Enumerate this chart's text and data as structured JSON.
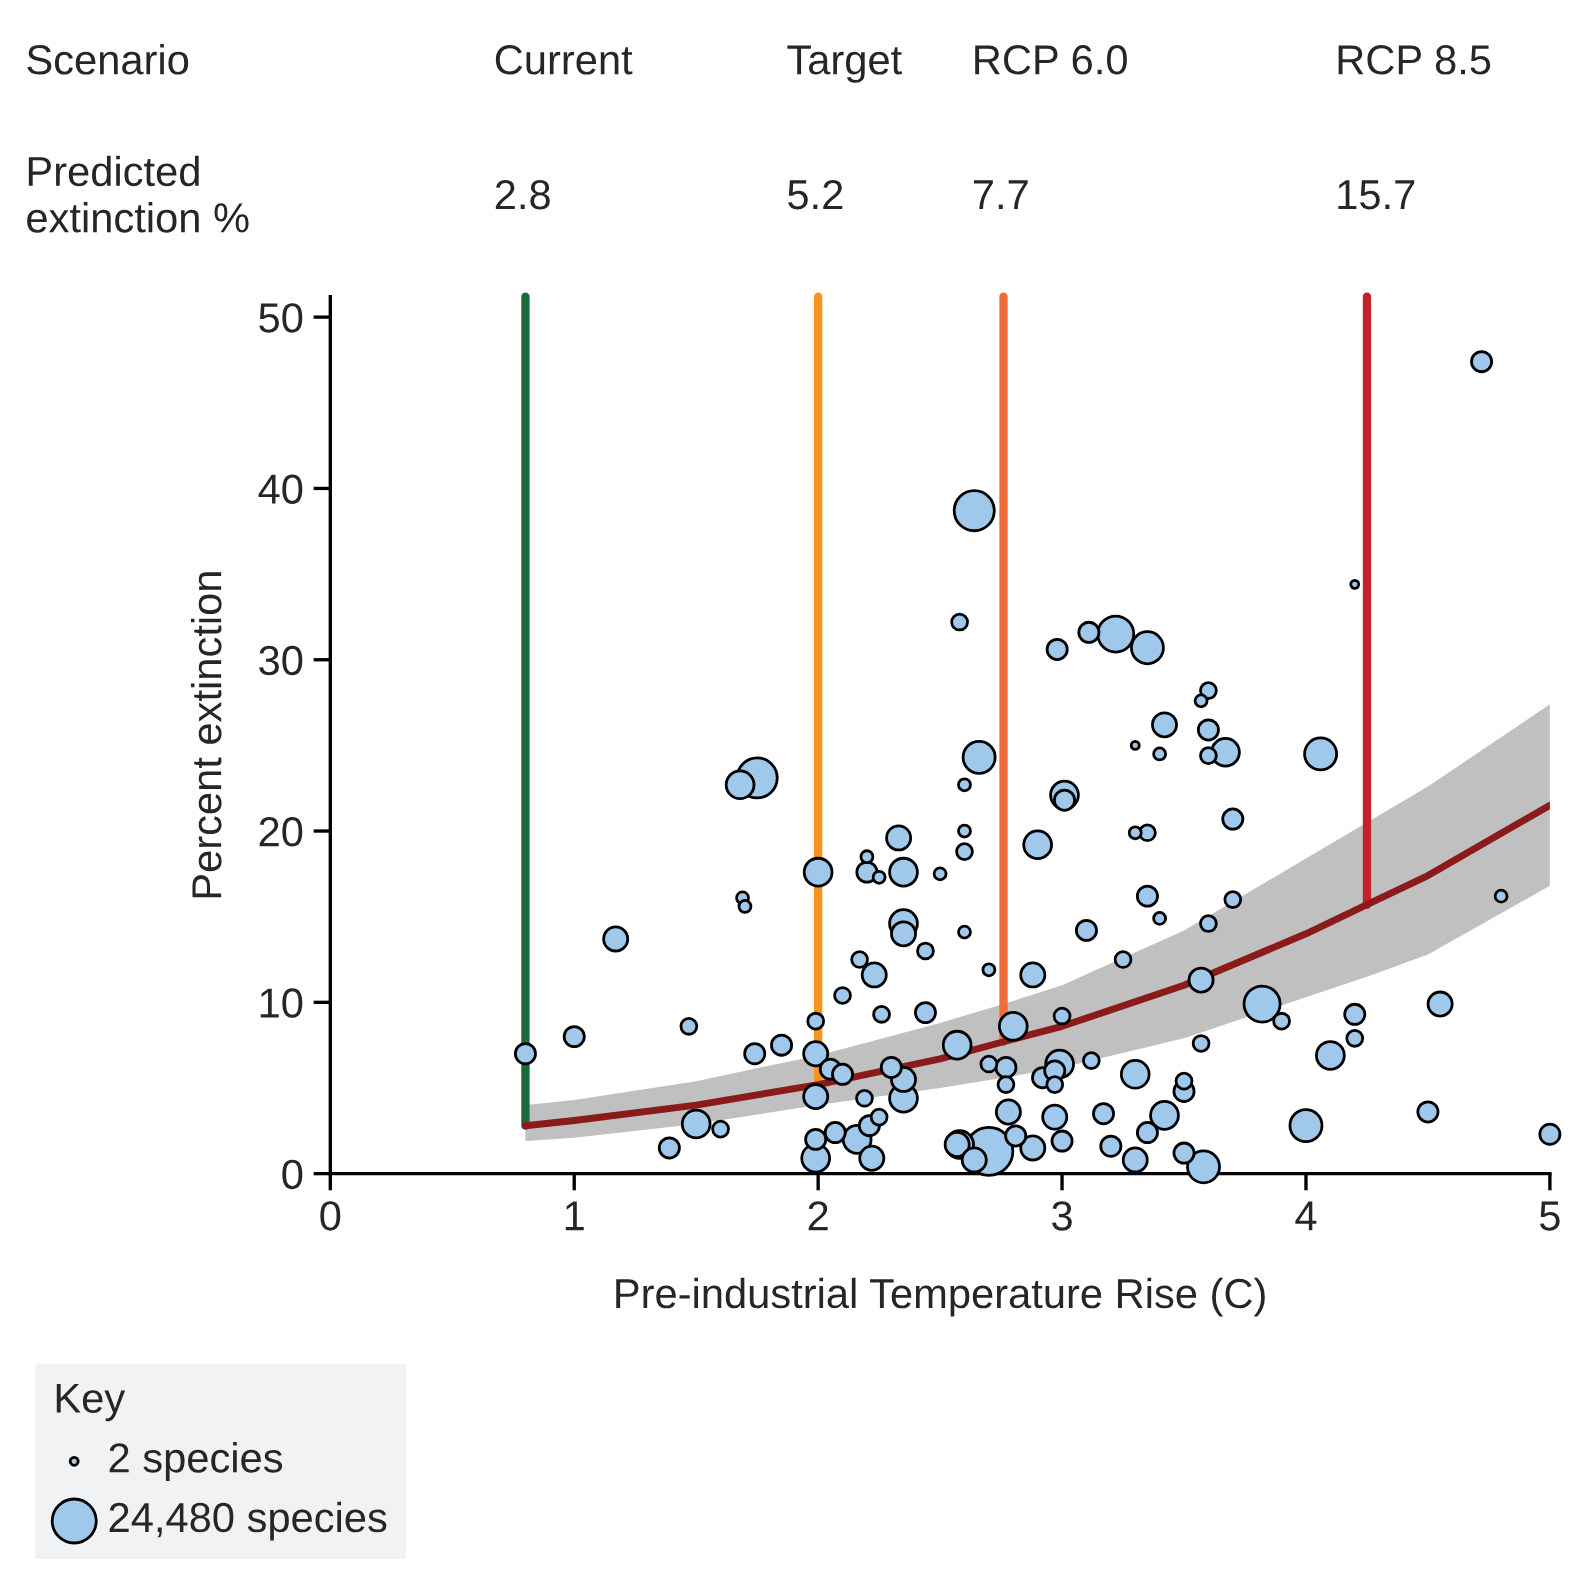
{
  "chart_data": {
    "type": "bubble",
    "xlabel": "Pre-industrial Temperature Rise (C)",
    "ylabel": "Percent extinction",
    "xlim": [
      0,
      5
    ],
    "xticks": [
      0,
      1,
      2,
      3,
      4,
      5
    ],
    "ylim": [
      0,
      51.2
    ],
    "yticks": [
      0,
      10,
      20,
      30,
      40,
      50
    ],
    "grid": false,
    "legend_title": "Key",
    "size_legend": [
      {
        "value": 0.033,
        "label": "2 species"
      },
      {
        "value": 1,
        "label": "24,480 species"
      }
    ],
    "series": [
      {
        "color": "#9fc8ea",
        "x": [
          0.8,
          1.0,
          1.17,
          1.47,
          1.39,
          1.5,
          1.6,
          1.74,
          1.85,
          1.69,
          1.7,
          1.68,
          1.75,
          2.0,
          2.2,
          2.2,
          2.25,
          2.33,
          2.35,
          2.5,
          2.35,
          2.35,
          2.44,
          2.17,
          2.23,
          2.1,
          2.26,
          2.44,
          1.99,
          1.99,
          2.05,
          2.1,
          1.99,
          2.19,
          2.3,
          2.35,
          2.35,
          2.25,
          2.21,
          2.07,
          2.16,
          1.99,
          1.99,
          2.22,
          2.57,
          2.57,
          2.6,
          2.6,
          2.9,
          3.3,
          3.35,
          3.7,
          3.01,
          3.35,
          3.4,
          3.7,
          4.8,
          3.1,
          2.6,
          3.6,
          3.25,
          2.88,
          2.7,
          3.57,
          3.82,
          3.9,
          4.2,
          4.55,
          4.2,
          2.8,
          3.0,
          3.57,
          4.1,
          2.7,
          2.77,
          2.77,
          2.99,
          2.92,
          2.97,
          2.97,
          3.12,
          3.3,
          3.5,
          3.5,
          2.78,
          2.97,
          3.17,
          3.42,
          3.35,
          4.5,
          4.0,
          5.0,
          2.58,
          2.7,
          2.64,
          2.81,
          2.88,
          3.0,
          3.2,
          3.3,
          3.5,
          3.58,
          4.72,
          2.64,
          4.2,
          2.58,
          2.98,
          3.11,
          3.22,
          3.35,
          3.6,
          3.57,
          3.42,
          3.6,
          3.3,
          3.4,
          3.6,
          3.67,
          4.06,
          2.66,
          2.6,
          3.01
        ],
        "values": [
          7.0,
          8.0,
          13.7,
          8.6,
          1.5,
          2.9,
          2.6,
          7.0,
          7.5,
          16.1,
          15.6,
          22.7,
          23.1,
          17.6,
          18.5,
          17.6,
          17.3,
          19.6,
          17.6,
          17.5,
          14.6,
          14.0,
          13.0,
          12.5,
          11.6,
          10.4,
          9.3,
          9.4,
          8.9,
          7.0,
          6.1,
          5.8,
          4.5,
          4.4,
          6.2,
          5.5,
          4.4,
          3.3,
          2.8,
          2.4,
          2.0,
          2.0,
          0.9,
          0.9,
          7.5,
          1.7,
          20.0,
          18.8,
          19.2,
          19.9,
          19.9,
          20.7,
          21.8,
          16.2,
          14.9,
          16.0,
          16.2,
          14.2,
          14.1,
          14.6,
          12.5,
          11.6,
          11.9,
          11.3,
          9.9,
          8.9,
          9.3,
          9.9,
          7.9,
          8.6,
          9.2,
          7.6,
          6.9,
          6.4,
          6.2,
          5.2,
          6.4,
          5.6,
          6.0,
          5.2,
          6.6,
          5.8,
          5.4,
          4.8,
          3.6,
          3.3,
          3.5,
          3.4,
          2.4,
          3.6,
          2.8,
          2.3,
          1.7,
          1.3,
          0.8,
          2.2,
          1.5,
          1.9,
          1.6,
          0.8,
          1.2,
          0.4,
          47.4,
          38.7,
          34.4,
          32.2,
          30.6,
          31.6,
          31.5,
          30.7,
          28.2,
          27.6,
          26.2,
          25.9,
          25.0,
          24.5,
          24.4,
          24.6,
          24.5,
          24.3,
          22.7,
          22.1
        ],
        "sizes": [
          0.21,
          0.21,
          0.3,
          0.13,
          0.21,
          0.4,
          0.13,
          0.21,
          0.21,
          0.074,
          0.074,
          0.4,
          0.83,
          0.4,
          0.074,
          0.21,
          0.074,
          0.3,
          0.4,
          0.074,
          0.4,
          0.3,
          0.13,
          0.13,
          0.3,
          0.13,
          0.13,
          0.21,
          0.13,
          0.3,
          0.21,
          0.21,
          0.3,
          0.13,
          0.21,
          0.3,
          0.4,
          0.13,
          0.21,
          0.21,
          0.4,
          0.21,
          0.4,
          0.3,
          0.4,
          0.3,
          0.074,
          0.13,
          0.4,
          0.074,
          0.13,
          0.21,
          0.21,
          0.21,
          0.074,
          0.13,
          0.074,
          0.21,
          0.074,
          0.13,
          0.13,
          0.3,
          0.074,
          0.3,
          0.67,
          0.13,
          0.21,
          0.3,
          0.13,
          0.4,
          0.13,
          0.13,
          0.4,
          0.13,
          0.21,
          0.13,
          0.4,
          0.21,
          0.21,
          0.13,
          0.13,
          0.4,
          0.13,
          0.21,
          0.3,
          0.3,
          0.21,
          0.4,
          0.21,
          0.21,
          0.53,
          0.21,
          0.4,
          1.19,
          0.3,
          0.21,
          0.3,
          0.21,
          0.21,
          0.3,
          0.21,
          0.53,
          0.21,
          0.83,
          0.033,
          0.13,
          0.21,
          0.21,
          0.67,
          0.53,
          0.13,
          0.074,
          0.3,
          0.21,
          0.033,
          0.074,
          0.13,
          0.4,
          0.53,
          0.53,
          0.074,
          0.4
        ]
      },
      {
        "type": "line",
        "color": "#8b1a1a",
        "x": [
          0.8,
          1.0,
          1.5,
          2.0,
          2.5,
          2.76,
          3.0,
          3.5,
          4.0,
          4.25,
          4.5,
          5.0
        ],
        "values": [
          2.8,
          3.1,
          4.0,
          5.2,
          6.7,
          7.7,
          8.6,
          11.0,
          14.0,
          15.7,
          17.4,
          21.5
        ],
        "lower": [
          1.9,
          2.1,
          2.9,
          4.0,
          5.0,
          5.6,
          6.2,
          7.9,
          10.3,
          11.5,
          12.8,
          16.8
        ],
        "upper": [
          4.0,
          4.3,
          5.4,
          6.9,
          8.8,
          9.9,
          11.0,
          14.2,
          18.4,
          20.5,
          22.6,
          27.4
        ]
      }
    ],
    "ref_lines": [
      {
        "axis": "x",
        "value": 0.8,
        "color": "#1a6b3c"
      },
      {
        "axis": "x",
        "value": 2.0,
        "color": "#f7941d"
      },
      {
        "axis": "x",
        "value": 2.76,
        "color": "#f26b3a"
      },
      {
        "axis": "x",
        "value": 4.25,
        "color": "#c4202e"
      }
    ],
    "annotations": [
      "Scenario",
      "Current",
      "Target",
      "RCP 6.0",
      "RCP 8.5",
      "Predicted extinction %",
      "2.8",
      "5.2",
      "7.7",
      "15.7"
    ]
  }
}
